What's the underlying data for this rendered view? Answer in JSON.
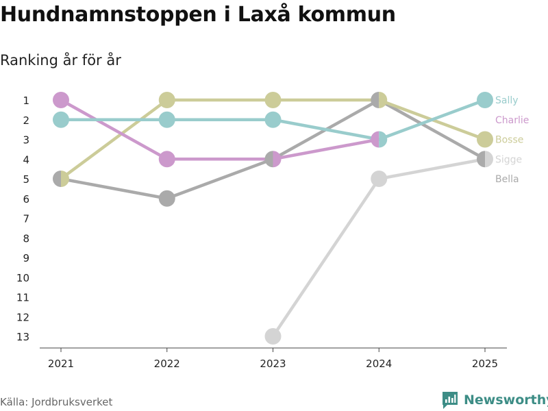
{
  "title": "Hundnamnstoppen i Laxå kommun",
  "subtitle": "Ranking år för år",
  "source": "Källa: Jordbruksverket",
  "brand": {
    "name": "Newsworthy",
    "icon": "newsworthy-logo-icon",
    "color": "#3d8d86"
  },
  "chart_data": {
    "type": "line",
    "x": [
      2021,
      2022,
      2023,
      2024,
      2025
    ],
    "x_tick_labels": [
      "2021",
      "2022",
      "2023",
      "2024",
      "2025"
    ],
    "y_ticks": [
      1,
      2,
      3,
      4,
      5,
      6,
      7,
      8,
      9,
      10,
      11,
      12,
      13
    ],
    "y_tick_labels": [
      "1",
      "2",
      "3",
      "4",
      "5",
      "6",
      "7",
      "8",
      "9",
      "10",
      "11",
      "12",
      "13"
    ],
    "ylim": [
      1,
      13
    ],
    "y_reversed": true,
    "grid": false,
    "legend": "right, labels at line ends",
    "series": [
      {
        "name": "Bella",
        "color": "#aaaaaa",
        "values": [
          5,
          6,
          4,
          1,
          4
        ]
      },
      {
        "name": "Sigge",
        "color": "#d4d4d4",
        "values": [
          null,
          null,
          13,
          5,
          4
        ]
      },
      {
        "name": "Bosse",
        "color": "#cccc99",
        "values": [
          5,
          1,
          1,
          1,
          3
        ]
      },
      {
        "name": "Charlie",
        "color": "#cc99cc",
        "values": [
          1,
          4,
          4,
          3,
          null
        ]
      },
      {
        "name": "Sally",
        "color": "#99cccc",
        "values": [
          2,
          2,
          2,
          3,
          1
        ]
      }
    ],
    "end_labels": [
      {
        "name": "Sally",
        "color": "#99cccc"
      },
      {
        "name": "Charlie",
        "color": "#cc99cc"
      },
      {
        "name": "Bosse",
        "color": "#cccc99"
      },
      {
        "name": "Sigge",
        "color": "#d4d4d4"
      },
      {
        "name": "Bella",
        "color": "#aaaaaa"
      }
    ]
  }
}
